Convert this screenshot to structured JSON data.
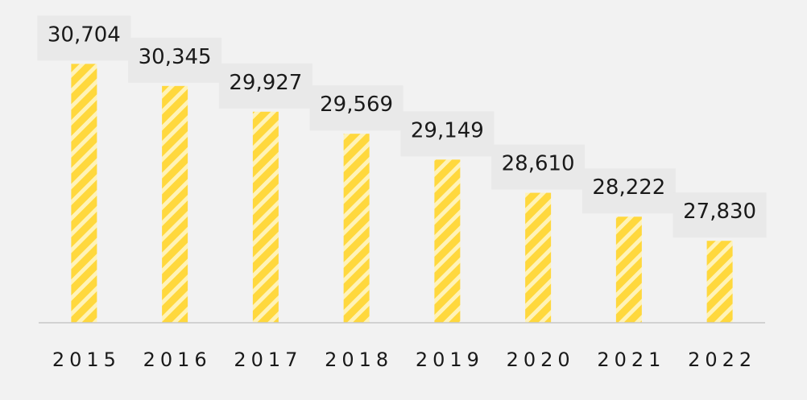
{
  "chart_data": {
    "type": "bar",
    "categories": [
      "2015",
      "2016",
      "2017",
      "2018",
      "2019",
      "2020",
      "2021",
      "2022"
    ],
    "values": [
      30704,
      30345,
      29927,
      29569,
      29149,
      28610,
      28222,
      27830
    ],
    "value_labels": [
      "30,704",
      "30,345",
      "29,927",
      "29,569",
      "29,149",
      "28,610",
      "28,222",
      "27,830"
    ],
    "title": "",
    "xlabel": "",
    "ylabel": "",
    "ylim": [
      26500,
      30800
    ],
    "grid": false,
    "legend": "none",
    "colors": {
      "bar": "#ffd83d",
      "bar_stripe": "#fff3b8",
      "label_box": "#e9e9e9",
      "baseline": "#c8c8c8",
      "background": "#f2f2f2"
    }
  }
}
